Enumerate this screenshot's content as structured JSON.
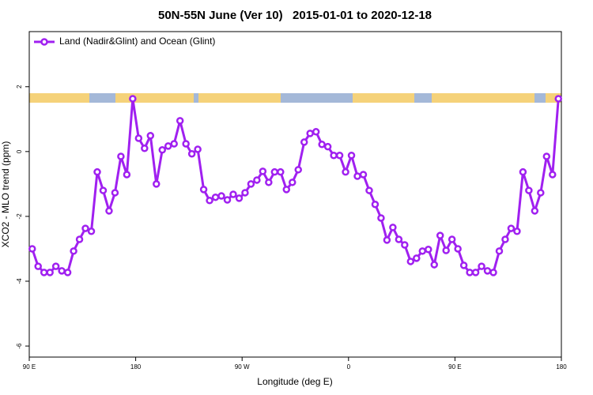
{
  "chart_data": {
    "type": "line",
    "title": "50N-55N June (Ver 10)   2015-01-01 to 2020-12-18",
    "xlabel": "Longitude (deg E)",
    "ylabel": "XCO2 - MLO trend (ppm)",
    "xlim": [
      90,
      540
    ],
    "ylim": [
      -6.34,
      3.7
    ],
    "xticks": [
      {
        "value": 90,
        "label": "90 E"
      },
      180,
      {
        "value": 270,
        "label": "90 W"
      },
      {
        "value": 360,
        "label": "0"
      },
      {
        "value": 450,
        "label": "90 E"
      },
      {
        "value": 540,
        "label": "180"
      }
    ],
    "yticks": [
      -6,
      -4,
      -2,
      0,
      2
    ],
    "legend": "top-left",
    "x": [
      92.5,
      97.5,
      102.5,
      107.5,
      112.5,
      117.5,
      122.5,
      127.5,
      132.5,
      137.5,
      142.5,
      147.5,
      152.5,
      157.5,
      162.5,
      167.5,
      172.5,
      177.5,
      182.5,
      187.5,
      192.5,
      197.5,
      202.5,
      207.5,
      212.5,
      217.5,
      222.5,
      227.5,
      232.5,
      237.5,
      242.5,
      247.5,
      252.5,
      257.5,
      262.5,
      267.5,
      272.5,
      277.5,
      282.5,
      287.5,
      292.5,
      297.5,
      302.5,
      307.5,
      312.5,
      317.5,
      322.5,
      327.5,
      332.5,
      337.5,
      342.5,
      347.5,
      352.5,
      357.5,
      362.5,
      367.5,
      372.5,
      377.5,
      382.5,
      387.5,
      392.5,
      397.5,
      402.5,
      407.5,
      412.5,
      417.5,
      422.5,
      427.5,
      432.5,
      437.5,
      442.5,
      447.5,
      452.5,
      457.5,
      462.5,
      467.5,
      472.5,
      477.5,
      482.5,
      487.5,
      492.5,
      497.5,
      502.5,
      507.5,
      512.5,
      517.5,
      522.5,
      527.5,
      532.5,
      537.5
    ],
    "series": [
      {
        "name": "Land (Nadir&Glint) and Ocean (Glint)",
        "color": "#a020f0",
        "values": [
          -3.0,
          -3.54,
          -3.73,
          -3.73,
          -3.54,
          -3.68,
          -3.73,
          -3.07,
          -2.71,
          -2.37,
          -2.46,
          -0.63,
          -1.2,
          -1.83,
          -1.27,
          -0.15,
          -0.71,
          1.63,
          0.41,
          0.1,
          0.49,
          -1.0,
          0.05,
          0.17,
          0.24,
          0.95,
          0.24,
          -0.07,
          0.07,
          -1.17,
          -1.51,
          -1.41,
          -1.37,
          -1.49,
          -1.32,
          -1.44,
          -1.27,
          -1.0,
          -0.88,
          -0.61,
          -0.95,
          -0.63,
          -0.63,
          -1.17,
          -0.95,
          -0.56,
          0.29,
          0.56,
          0.61,
          0.22,
          0.15,
          -0.12,
          -0.12,
          -0.63,
          -0.12,
          -0.76,
          -0.71,
          -1.2,
          -1.63,
          -2.05,
          -2.73,
          -2.34,
          -2.71,
          -2.88,
          -3.39,
          -3.29,
          -3.07,
          -3.02,
          -3.49,
          -2.59,
          -3.05,
          -2.71,
          -3.0,
          -3.51,
          -3.73,
          -3.73,
          -3.54,
          -3.68,
          -3.73,
          -3.07,
          -2.71,
          -2.37,
          -2.46,
          -0.63,
          -1.2,
          -1.83,
          -1.27,
          -0.15,
          -0.71,
          1.63
        ]
      }
    ]
  }
}
